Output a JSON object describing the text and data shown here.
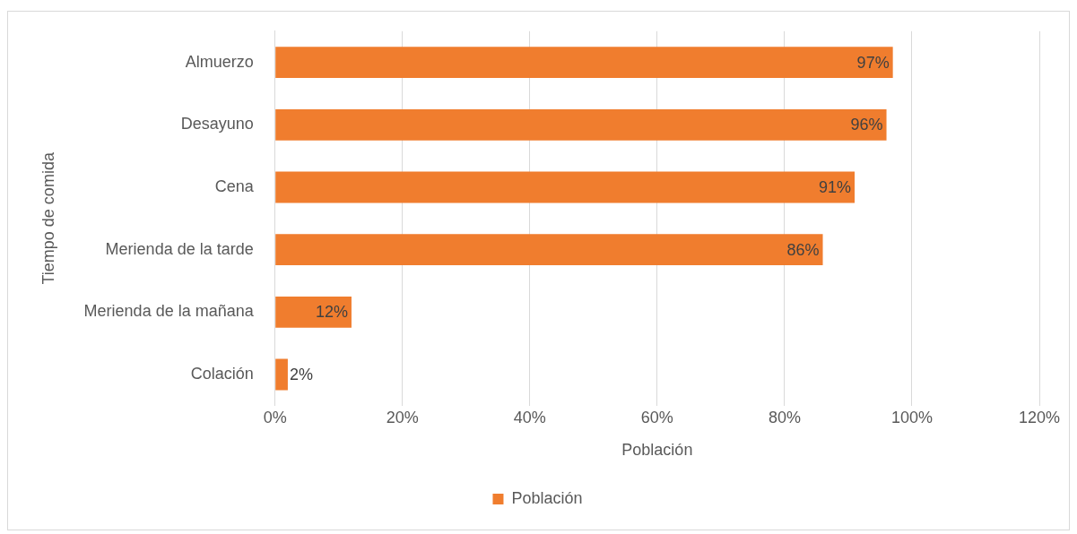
{
  "chart_data": {
    "type": "bar",
    "orientation": "horizontal",
    "categories": [
      "Almuerzo",
      "Desayuno",
      "Cena",
      "Merienda de la tarde",
      "Merienda de la mañana",
      "Colación"
    ],
    "series": [
      {
        "name": "Población",
        "color": "#f07d2e",
        "values": [
          97,
          96,
          91,
          86,
          12,
          2
        ],
        "value_labels": [
          "97%",
          "96%",
          "91%",
          "86%",
          "12%",
          "2%"
        ]
      }
    ],
    "xlim": [
      0,
      120
    ],
    "xticks": [
      {
        "value": 0,
        "label": "0%"
      },
      {
        "value": 20,
        "label": "20%"
      },
      {
        "value": 40,
        "label": "40%"
      },
      {
        "value": 60,
        "label": "60%"
      },
      {
        "value": 80,
        "label": "80%"
      },
      {
        "value": 100,
        "label": "100%"
      },
      {
        "value": 120,
        "label": "120%"
      }
    ],
    "xlabel": "Población",
    "ylabel": "Tiempo de comida",
    "grid": "x",
    "legend": "bottom"
  }
}
